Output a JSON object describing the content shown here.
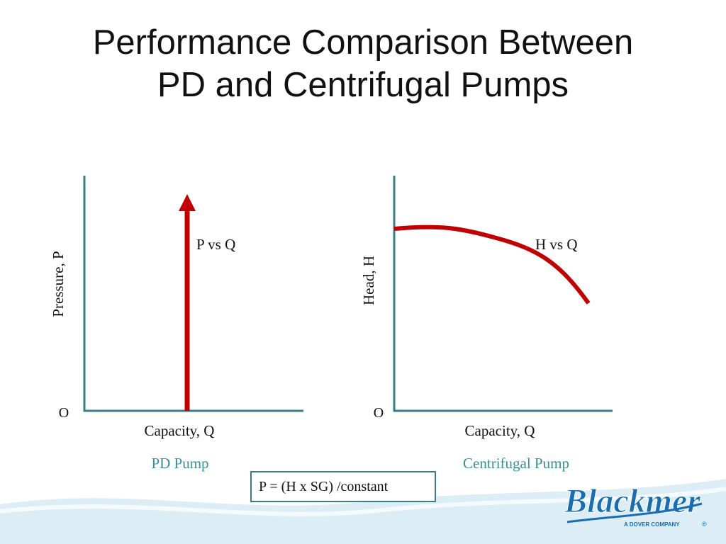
{
  "title": {
    "line1": "Performance Comparison Between",
    "line2": "PD and Centrifugal Pumps"
  },
  "left_graph": {
    "y_label": "Pressure, P",
    "x_label": "Capacity, Q",
    "origin": "O",
    "curve_label": "P vs Q",
    "caption": "PD Pump"
  },
  "right_graph": {
    "y_label": "Head, H",
    "x_label": "Capacity, Q",
    "origin": "O",
    "curve_label": "H vs Q",
    "caption": "Centrifugal Pump"
  },
  "formula": "P = (H x SG) /constant",
  "logo": {
    "name": "Blackmer",
    "tagline": "A DOVER COMPANY",
    "mark": "®"
  },
  "colors": {
    "curve": "#c00000",
    "axis": "#3a7f86",
    "caption": "#3a8f99",
    "wave": "#d5e8f2",
    "brand": "#1a6db0"
  }
}
